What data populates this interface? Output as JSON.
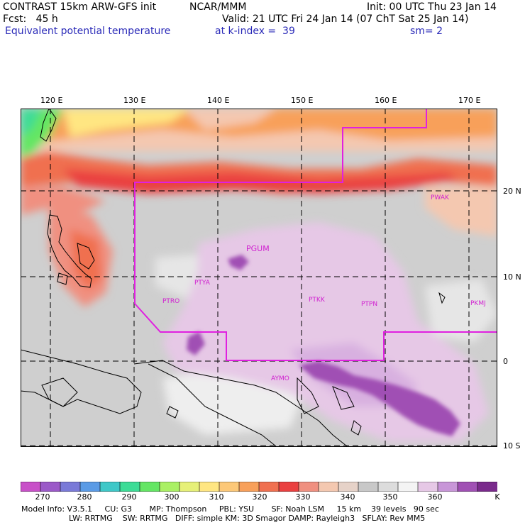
{
  "header": {
    "title": "CONTRAST 15km ARW-GFS init",
    "org": "NCAR/MMM",
    "init": "Init: 00 UTC Thu 23 Jan 14",
    "fcst": "Fcst:   45 h",
    "valid": "Valid: 21 UTC Fri 24 Jan 14 (07 ChT Sat 25 Jan 14)",
    "field": "Equivalent potential temperature",
    "level": "at k-index =  39",
    "smooth": "sm= 2"
  },
  "map": {
    "lon_labels": [
      "120 E",
      "130 E",
      "140 E",
      "150 E",
      "160 E",
      "170 E"
    ],
    "lat_labels": [
      "20 N",
      "10 N",
      "0",
      "10 S"
    ],
    "stations": [
      "PGUM",
      "PTYA",
      "PTRO",
      "PTKK",
      "PTPN",
      "PKMJ",
      "PWAK",
      "AYMO"
    ],
    "boundary_color": "#e020e0",
    "station_color": "#d020d0"
  },
  "colorbar": {
    "labels": [
      "270",
      "280",
      "290",
      "300",
      "310",
      "320",
      "330",
      "340",
      "350",
      "360"
    ],
    "unit": "K",
    "colors": [
      "#c850c8",
      "#9b59c8",
      "#7a7ad8",
      "#5a9be6",
      "#3ec8c8",
      "#3cdc96",
      "#64e664",
      "#aaf064",
      "#e6f078",
      "#ffe682",
      "#fcc878",
      "#f8a05a",
      "#f07050",
      "#ea4040",
      "#f09080",
      "#f4c8b0",
      "#e6d2c8",
      "#c8c8c8",
      "#dcdcdc",
      "#f4f4f4",
      "#e6c8e6",
      "#c896d8",
      "#a050b4",
      "#7a2a8c"
    ]
  },
  "model_info": {
    "line1": "Model Info: V3.5.1     CU: G3       MP: Thompson     PBL: YSU       SF: Noah LSM     15 km    39 levels   90 sec",
    "line2": "LW: RRTMG    SW: RRTMG   DIFF: simple KM: 3D Smagor DAMP: Rayleigh3   SFLAY: Rev MM5"
  }
}
